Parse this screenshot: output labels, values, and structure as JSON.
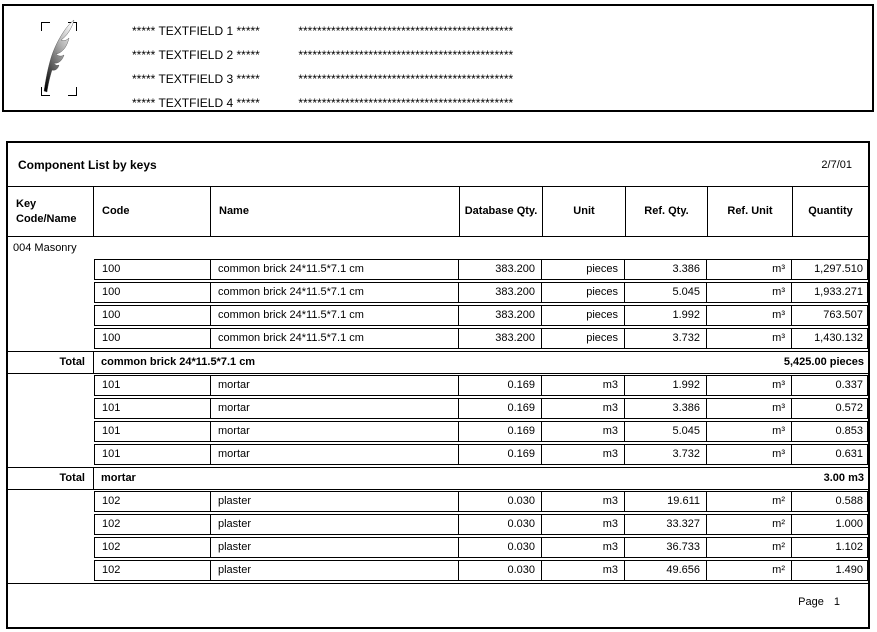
{
  "letterhead": {
    "logo": "feather-icon",
    "fields": [
      {
        "label": "***** TEXTFIELD 1 *****",
        "value": "**********************************************"
      },
      {
        "label": "***** TEXTFIELD 2 *****",
        "value": "**********************************************"
      },
      {
        "label": "***** TEXTFIELD 3 *****",
        "value": "**********************************************"
      },
      {
        "label": "***** TEXTFIELD 4 *****",
        "value": "**********************************************"
      }
    ]
  },
  "report": {
    "title": "Component List by keys",
    "date": "2/7/01",
    "columns": {
      "key_line1": "Key",
      "key_line2": "Code/Name",
      "code": "Code",
      "name": "Name",
      "database_qty": "Database Qty.",
      "unit": "Unit",
      "ref_qty": "Ref. Qty.",
      "ref_unit": "Ref. Unit",
      "quantity": "Quantity"
    },
    "group_label": "004 Masonry",
    "sections": [
      {
        "rows": [
          {
            "code": "100",
            "name": "common brick 24*11.5*7.1 cm",
            "database_qty": "383.200",
            "unit": "pieces",
            "ref_qty": "3.386",
            "ref_unit": "m³",
            "quantity": "1,297.510"
          },
          {
            "code": "100",
            "name": "common brick 24*11.5*7.1 cm",
            "database_qty": "383.200",
            "unit": "pieces",
            "ref_qty": "5.045",
            "ref_unit": "m³",
            "quantity": "1,933.271"
          },
          {
            "code": "100",
            "name": "common brick 24*11.5*7.1 cm",
            "database_qty": "383.200",
            "unit": "pieces",
            "ref_qty": "1.992",
            "ref_unit": "m³",
            "quantity": "763.507"
          },
          {
            "code": "100",
            "name": "common brick 24*11.5*7.1 cm",
            "database_qty": "383.200",
            "unit": "pieces",
            "ref_qty": "3.732",
            "ref_unit": "m³",
            "quantity": "1,430.132"
          }
        ],
        "total": {
          "label": "Total",
          "name": "common brick 24*11.5*7.1 cm",
          "value": "5,425.00 pieces"
        }
      },
      {
        "rows": [
          {
            "code": "101",
            "name": "mortar",
            "database_qty": "0.169",
            "unit": "m3",
            "ref_qty": "1.992",
            "ref_unit": "m³",
            "quantity": "0.337"
          },
          {
            "code": "101",
            "name": "mortar",
            "database_qty": "0.169",
            "unit": "m3",
            "ref_qty": "3.386",
            "ref_unit": "m³",
            "quantity": "0.572"
          },
          {
            "code": "101",
            "name": "mortar",
            "database_qty": "0.169",
            "unit": "m3",
            "ref_qty": "5.045",
            "ref_unit": "m³",
            "quantity": "0.853"
          },
          {
            "code": "101",
            "name": "mortar",
            "database_qty": "0.169",
            "unit": "m3",
            "ref_qty": "3.732",
            "ref_unit": "m³",
            "quantity": "0.631"
          }
        ],
        "total": {
          "label": "Total",
          "name": "mortar",
          "value": "3.00 m3"
        }
      },
      {
        "rows": [
          {
            "code": "102",
            "name": "plaster",
            "database_qty": "0.030",
            "unit": "m3",
            "ref_qty": "19.611",
            "ref_unit": "m²",
            "quantity": "0.588"
          },
          {
            "code": "102",
            "name": "plaster",
            "database_qty": "0.030",
            "unit": "m3",
            "ref_qty": "33.327",
            "ref_unit": "m²",
            "quantity": "1.000"
          },
          {
            "code": "102",
            "name": "plaster",
            "database_qty": "0.030",
            "unit": "m3",
            "ref_qty": "36.733",
            "ref_unit": "m²",
            "quantity": "1.102"
          },
          {
            "code": "102",
            "name": "plaster",
            "database_qty": "0.030",
            "unit": "m3",
            "ref_qty": "49.656",
            "ref_unit": "m²",
            "quantity": "1.490"
          }
        ],
        "total": null
      }
    ],
    "footer": {
      "page_label": "Page",
      "page_number": "1"
    }
  }
}
